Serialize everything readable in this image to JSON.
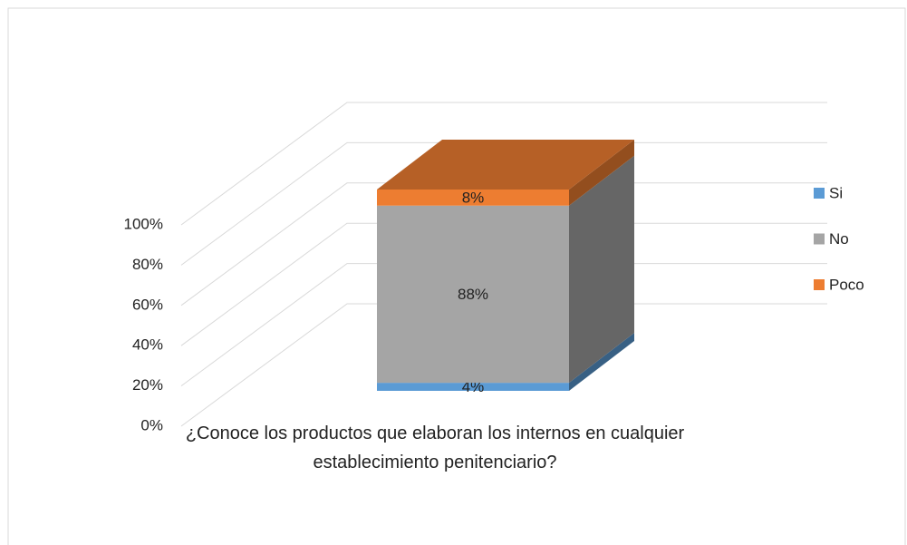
{
  "chart_data": {
    "type": "bar3d_stacked",
    "categories": [
      "¿Conoce los productos que elaboran los internos en cualquier establecimiento penitenciario?"
    ],
    "series": [
      {
        "name": "Si",
        "color": "#5b9bd5",
        "values": [
          4
        ],
        "value_labels": [
          "4%"
        ]
      },
      {
        "name": "No",
        "color": "#a5a5a5",
        "values": [
          88
        ],
        "value_labels": [
          "88%"
        ]
      },
      {
        "name": "Poco",
        "color": "#ed7d31",
        "values": [
          8
        ],
        "value_labels": [
          "8%"
        ]
      }
    ],
    "ylim": [
      0,
      100
    ],
    "yticks": [
      {
        "value": 0,
        "label": "0%"
      },
      {
        "value": 20,
        "label": "20%"
      },
      {
        "value": 40,
        "label": "40%"
      },
      {
        "value": 60,
        "label": "60%"
      },
      {
        "value": 80,
        "label": "80%"
      },
      {
        "value": 100,
        "label": "100%"
      }
    ],
    "grid": true,
    "legend": "right"
  }
}
